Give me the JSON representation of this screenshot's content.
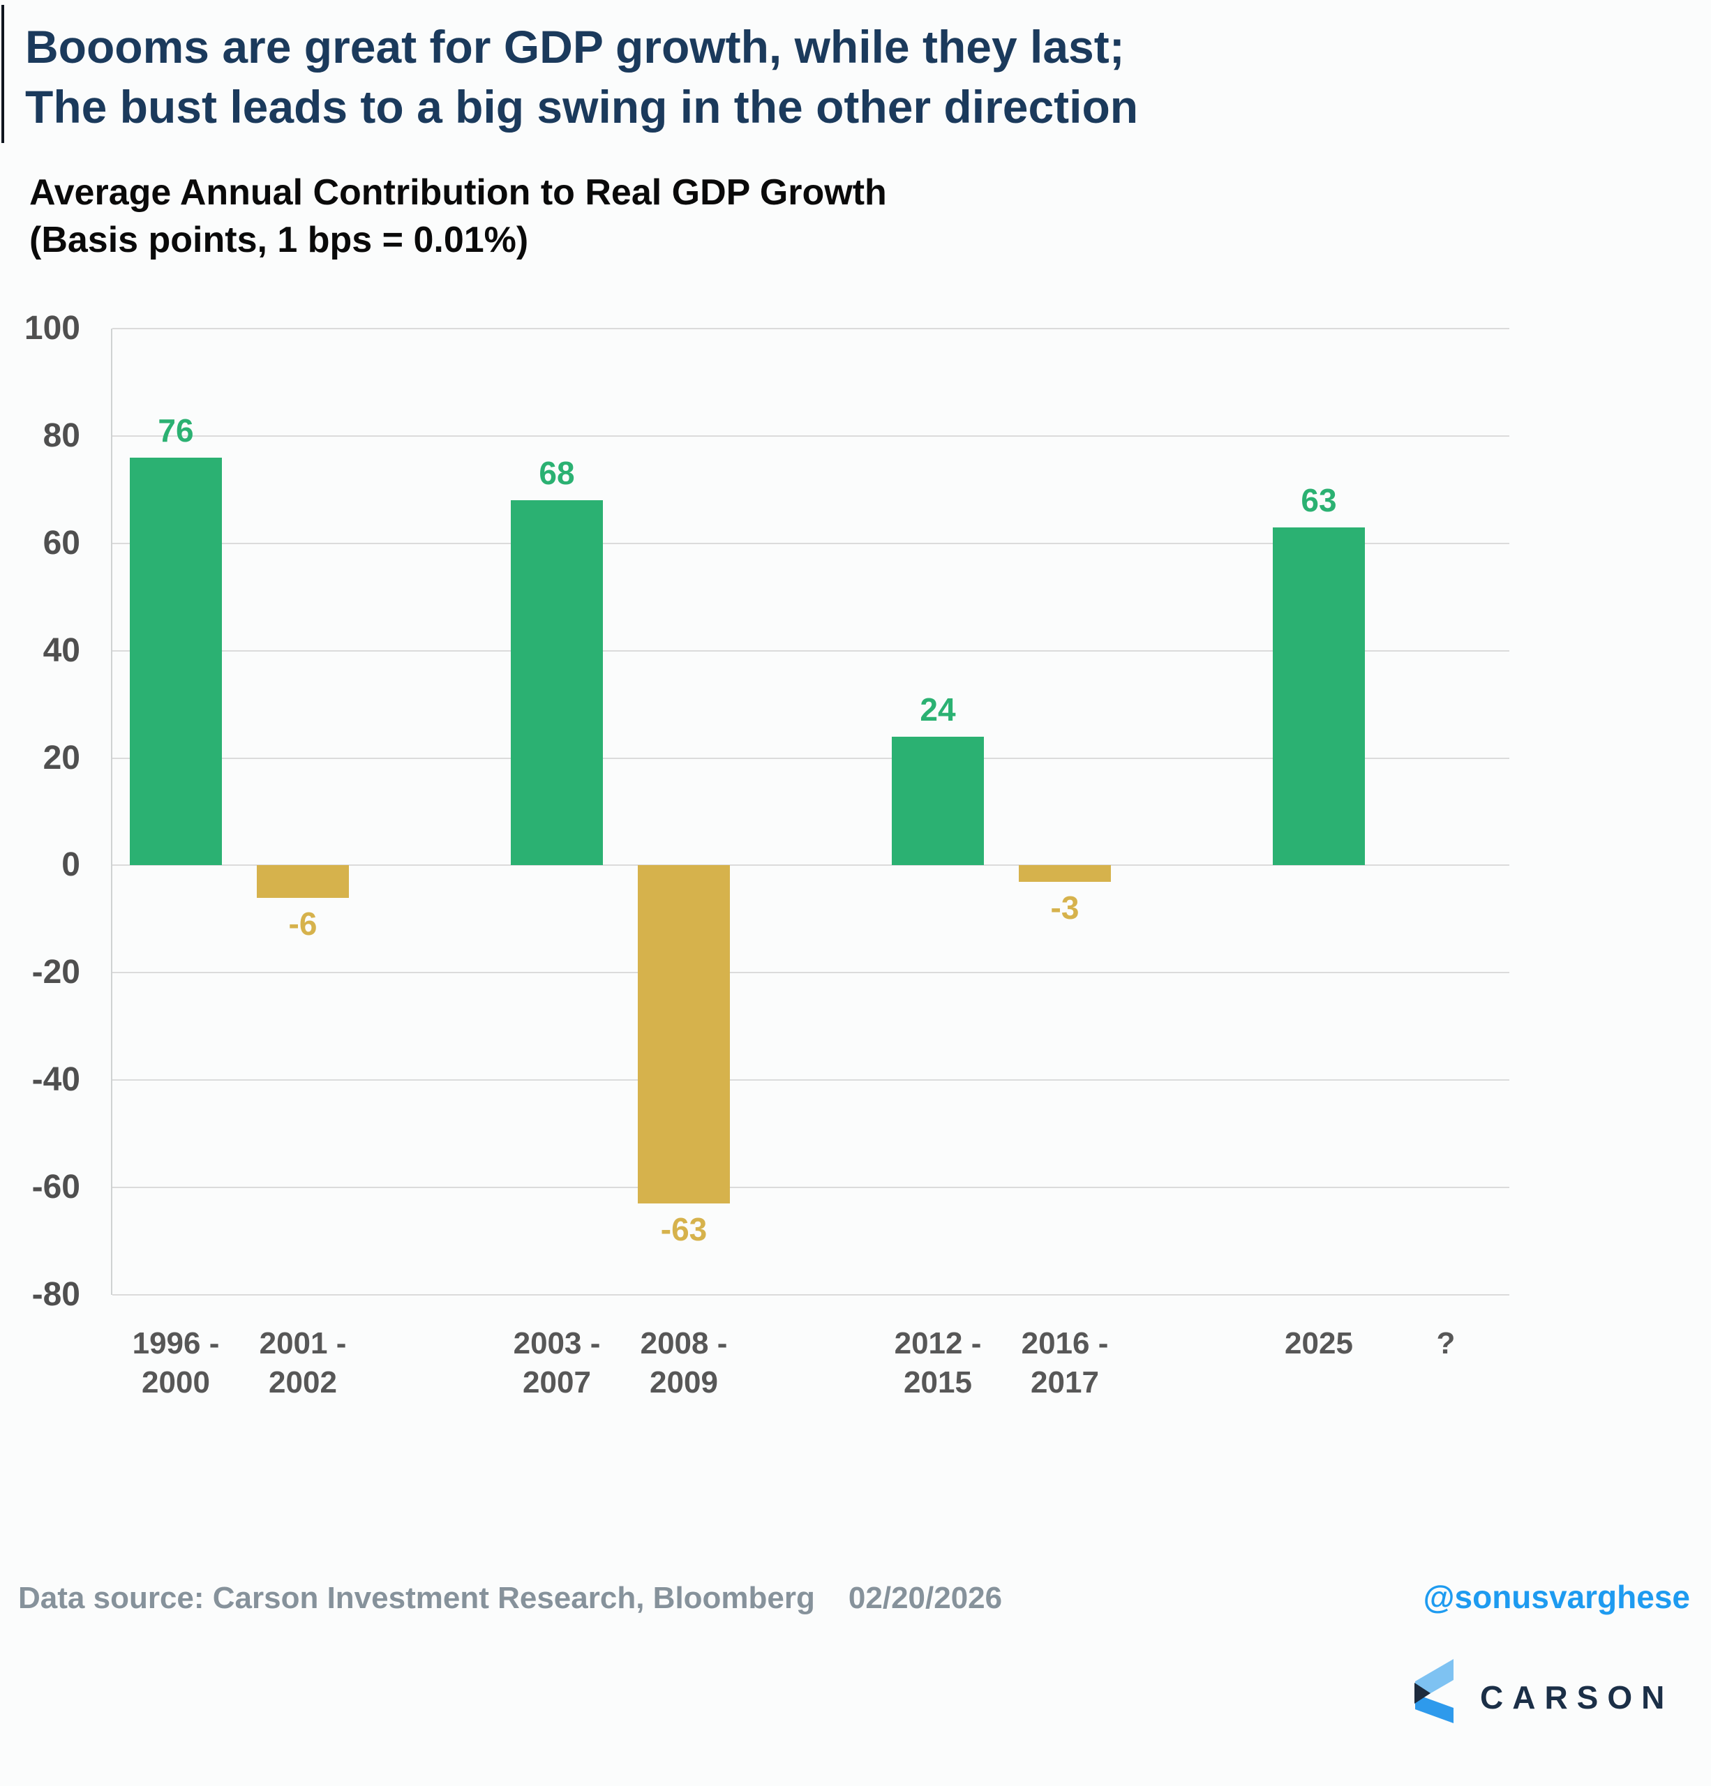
{
  "header": {
    "title_line1": "Boooms are great for GDP growth, while they last;",
    "title_line2": "The bust leads to a big swing in the other direction",
    "subtitle_line1": "Average Annual Contribution to Real GDP Growth",
    "subtitle_line2": "(Basis points, 1 bps = 0.01%)"
  },
  "chart_data": {
    "type": "bar",
    "title": "Average Annual Contribution to Real GDP Growth",
    "units_note": "Basis points, 1 bps = 0.01%",
    "categories": [
      "1996 -\n2000",
      "2001 -\n2002",
      "2003 -\n2007",
      "2008 -\n2009",
      "2012 -\n2015",
      "2016 -\n2017",
      "2025",
      "?"
    ],
    "values": [
      76,
      -6,
      68,
      -63,
      24,
      -3,
      63,
      null
    ],
    "layout": {
      "slots": [
        0,
        1,
        3,
        4,
        6,
        7,
        9,
        10
      ],
      "n_slots": 11
    },
    "yticks": [
      100,
      80,
      60,
      40,
      20,
      0,
      -20,
      -40,
      -60,
      -80
    ],
    "ylim": [
      -80,
      100
    ],
    "grid": true,
    "legend": false,
    "colors": {
      "positive": "#2BB172",
      "negative": "#D6B24C",
      "gridline": "#DBDBDB",
      "tick_text": "#4F4F4F",
      "xlabel_text": "#575757"
    }
  },
  "footer": {
    "source_text": "Data source: Carson Investment Research, Bloomberg",
    "date": "02/20/2026",
    "handle": "@sonusvarghese",
    "handle_color": "#1E9BF0",
    "logo_word": "CARSON",
    "logo_colors": {
      "light": "#7EC2F2",
      "mid": "#2E9AEC",
      "dark": "#1D2B3D",
      "text": "#1B2F47"
    }
  }
}
